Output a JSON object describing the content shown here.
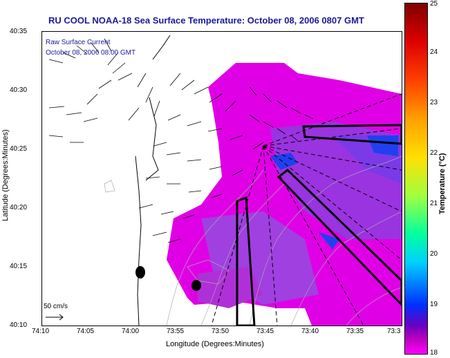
{
  "title": "RU COOL  NOAA-18  Sea Surface Temperature:  October 08, 2006 0807 GMT",
  "legend": {
    "line1": "Raw Surface Current",
    "line2": "October 08, 2006 08:00 GMT"
  },
  "axes": {
    "ylabel": "Latitude (Degrees:Minutes)",
    "xlabel": "Longitude (Degrees:Minutes)",
    "yticks": [
      "40:35",
      "40:30",
      "40:25",
      "40:20",
      "40:15",
      "40:10"
    ],
    "xticks": [
      "74:10",
      "74:05",
      "74:00",
      "73:55",
      "73:50",
      "73:45",
      "73:40",
      "73:35",
      "73:3"
    ]
  },
  "colorbar": {
    "label": "Temperature (°C)",
    "ticks": [
      "25",
      "24",
      "23",
      "22",
      "21",
      "20",
      "19",
      "18"
    ],
    "range": [
      18,
      25
    ]
  },
  "scale": {
    "label": "50 cm/s"
  }
}
